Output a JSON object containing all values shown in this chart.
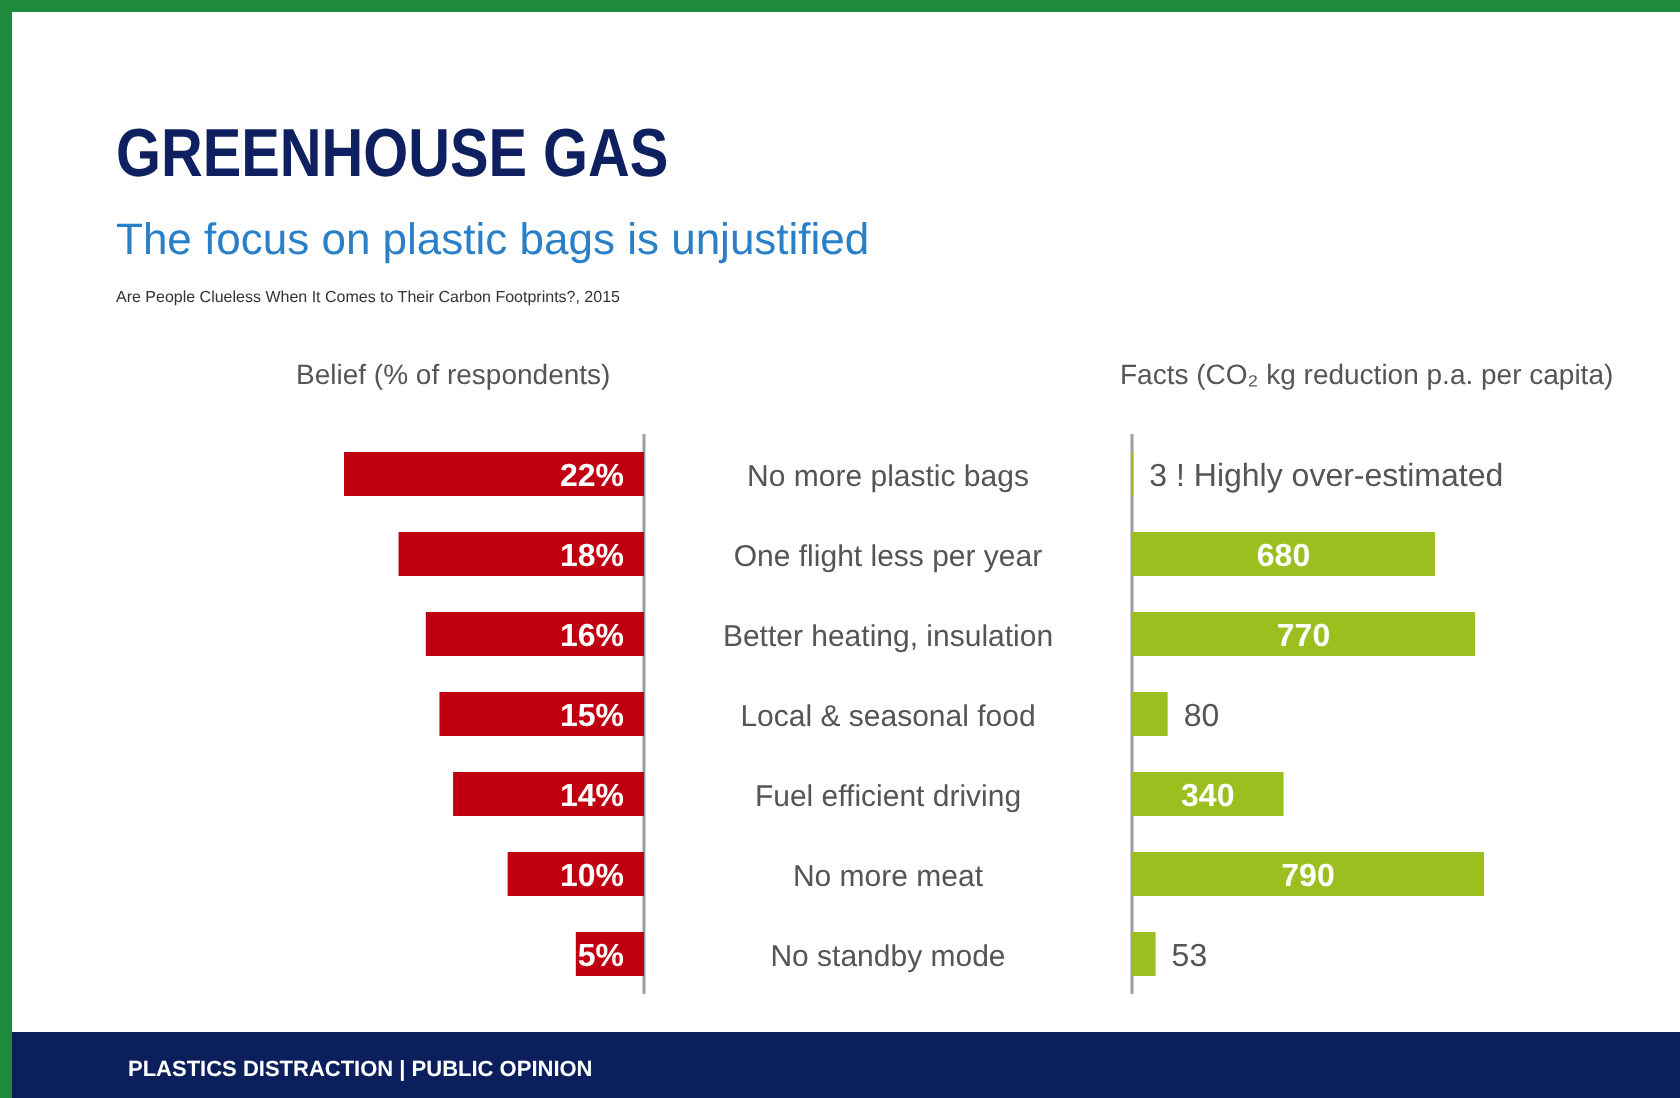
{
  "chart_data": [
    {
      "type": "other",
      "title": "GREENHOUSE GAS",
      "subtitle": "The focus on plastic bags is unjustified",
      "annotations": [
        "Are People Clueless When It Comes to Their Carbon Footprints?, 2015",
        "PLASTICS DISTRACTION | PUBLIC OPINION"
      ]
    },
    {
      "type": "bar",
      "orientation": "horizontal",
      "title": "Belief (% of respondents)",
      "categories": [
        "No more plastic bags",
        "One flight less per year",
        "Better heating, insulation",
        "Local & seasonal food",
        "Fuel efficient driving",
        "No more meat",
        "No standby mode"
      ],
      "values": [
        22,
        18,
        16,
        15,
        14,
        10,
        5
      ],
      "value_labels": [
        "22%",
        "18%",
        "16%",
        "15%",
        "14%",
        "10%",
        "5%"
      ],
      "color": "#c00010",
      "tick_labels": "y"
    },
    {
      "type": "bar",
      "orientation": "horizontal",
      "title": "Facts (CO₂ kg reduction p.a. per capita)",
      "categories": [
        null,
        null,
        null,
        null,
        null,
        null,
        null
      ],
      "values": [
        3,
        680,
        770,
        80,
        340,
        790,
        53
      ],
      "value_labels": [
        "3 ! Highly over-estimated",
        "680",
        "770",
        "80",
        "340",
        "790",
        "53"
      ],
      "color": "#9bbf1e"
    }
  ]
}
